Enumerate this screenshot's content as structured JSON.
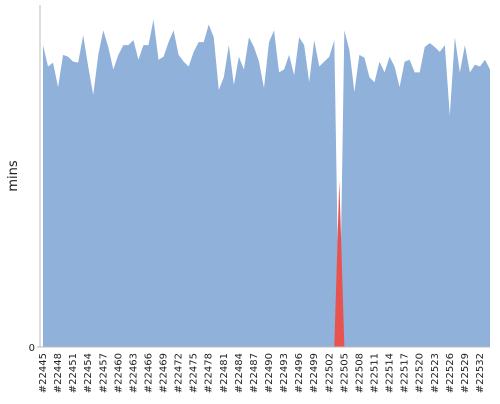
{
  "chart_data": {
    "type": "area",
    "ylabel": "mins",
    "categories": [
      "#22445",
      null,
      null,
      "#22448",
      null,
      null,
      "#22451",
      null,
      null,
      "#22454",
      null,
      null,
      "#22457",
      null,
      null,
      "#22460",
      null,
      null,
      "#22463",
      null,
      null,
      "#22466",
      null,
      null,
      "#22469",
      null,
      null,
      "#22472",
      null,
      null,
      "#22475",
      null,
      null,
      "#22478",
      null,
      null,
      "#22481",
      null,
      null,
      "#22484",
      null,
      null,
      "#22487",
      null,
      null,
      "#22490",
      null,
      null,
      "#22493",
      null,
      null,
      "#22496",
      null,
      null,
      "#22499",
      null,
      null,
      "#22502",
      null,
      null,
      "#22505",
      null,
      null,
      "#22508",
      null,
      null,
      "#22511",
      null,
      null,
      "#22514",
      null,
      null,
      "#22517",
      null,
      null,
      "#22520",
      null,
      null,
      "#22523",
      null,
      null,
      "#22526",
      null,
      null,
      "#22529",
      null,
      null,
      "#22532",
      null,
      null
    ],
    "series": [
      {
        "color": "#8fb1da",
        "values": [
          30.9,
          28.7,
          29.1,
          26.6,
          29.9,
          29.7,
          29.2,
          29.1,
          31.9,
          28.7,
          25.8,
          29.9,
          32.4,
          30.7,
          28.4,
          29.9,
          30.9,
          30.9,
          31.4,
          29.4,
          30.9,
          30.9,
          33.5,
          29.4,
          29.7,
          31.2,
          32.4,
          29.9,
          29.2,
          28.7,
          30.2,
          31.2,
          31.2,
          33.0,
          31.7,
          26.3,
          27.6,
          30.9,
          26.8,
          29.7,
          28.4,
          31.7,
          30.7,
          29.2,
          26.5,
          31.2,
          32.4,
          28.1,
          28.4,
          29.9,
          27.8,
          31.7,
          30.9,
          27.1,
          31.4,
          28.7,
          29.2,
          29.7,
          31.4,
          0,
          32.4,
          30.4,
          26.1,
          29.9,
          29.6,
          27.6,
          27.1,
          29.2,
          28.1,
          29.7,
          28.7,
          26.6,
          29.2,
          29.4,
          28.1,
          28.1,
          30.7,
          31.1,
          30.7,
          30.2,
          30.9,
          23.7,
          31.7,
          28.1,
          30.9,
          28.1,
          28.9,
          28.7,
          29.4,
          28.4
        ]
      },
      {
        "color": "#e8534f",
        "values": [
          null,
          null,
          null,
          null,
          null,
          null,
          null,
          null,
          null,
          null,
          null,
          null,
          null,
          null,
          null,
          null,
          null,
          null,
          null,
          null,
          null,
          null,
          null,
          null,
          null,
          null,
          null,
          null,
          null,
          null,
          null,
          null,
          null,
          null,
          null,
          null,
          null,
          null,
          null,
          null,
          null,
          null,
          null,
          null,
          null,
          null,
          null,
          null,
          null,
          null,
          null,
          null,
          null,
          null,
          null,
          null,
          null,
          null,
          0,
          17,
          0,
          null,
          null,
          null,
          null,
          null,
          null,
          null,
          null,
          null,
          null,
          null,
          null,
          null,
          null,
          null,
          null,
          null,
          null,
          null,
          null,
          null,
          null,
          null,
          null,
          null,
          null,
          null,
          null,
          null
        ]
      }
    ],
    "ylim": [
      0,
      35
    ],
    "yticks": [
      0
    ]
  }
}
